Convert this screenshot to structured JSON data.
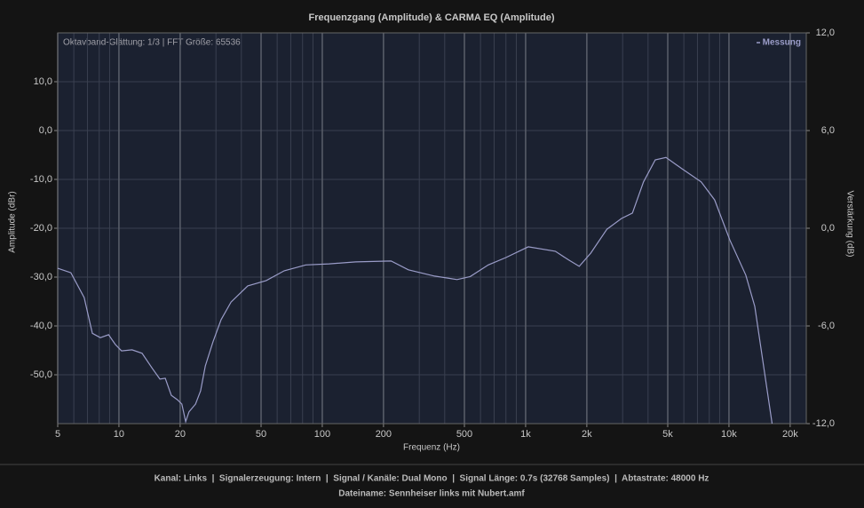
{
  "chart_data": {
    "type": "line",
    "title": "Frequenzgang (Amplitude) & CARMA EQ (Amplitude)",
    "x_label": "Frequenz (Hz)",
    "y_label": "Amplitude (dBr)",
    "y2_label": "Verstärkung (dB)",
    "annotation": "Oktavband-Glättung: 1/3 | FFT Größe: 65536",
    "x_log": true,
    "grid": true,
    "minor_grid": true,
    "legend": "top-right",
    "xlim": [
      5,
      24000
    ],
    "xticks": [
      5,
      10,
      20,
      50,
      100,
      200,
      500,
      {
        "value": 1000,
        "label": "1k"
      },
      {
        "value": 2000,
        "label": "2k"
      },
      {
        "value": 5000,
        "label": "5k"
      },
      {
        "value": 10000,
        "label": "10k"
      },
      {
        "value": 20000,
        "label": "20k"
      }
    ],
    "ylim": [
      -60,
      20
    ],
    "yticks": [
      {
        "value": 10,
        "label": "10,0"
      },
      {
        "value": 0,
        "label": "0,0"
      },
      {
        "value": -10,
        "label": "-10,0"
      },
      {
        "value": -20,
        "label": "-20,0"
      },
      {
        "value": -30,
        "label": "-30,0"
      },
      {
        "value": -40,
        "label": "-40,0"
      },
      {
        "value": -50,
        "label": "-50,0"
      }
    ],
    "y2lim": [
      -12,
      12
    ],
    "y2ticks": [
      {
        "value": 12,
        "label": "12,0"
      },
      {
        "value": 6,
        "label": "6,0"
      },
      {
        "value": 0,
        "label": "0,0"
      },
      {
        "value": -6,
        "label": "-6,0"
      },
      {
        "value": -12,
        "label": "-12,0"
      }
    ],
    "x": [
      5,
      5.8,
      6.75,
      7.4,
      8.1,
      8.9,
      9.6,
      10.3,
      11.6,
      13,
      14.6,
      15.9,
      16.9,
      18.1,
      19.4,
      20.4,
      21.3,
      22.1,
      23.8,
      25.2,
      26.6,
      29,
      31.8,
      35.6,
      43,
      53,
      65,
      83,
      108,
      146,
      218,
      265,
      357,
      460,
      534,
      655,
      800,
      1030,
      1400,
      1630,
      1835,
      2090,
      2510,
      2960,
      3350,
      3800,
      4340,
      4900,
      5860,
      7300,
      8500,
      10100,
      12100,
      13400,
      16300
    ],
    "series": [
      {
        "name": "Messung",
        "color": "#9a9cc8",
        "values": [
          -28.2,
          -29.1,
          -34.2,
          -41.5,
          -42.4,
          -41.8,
          -43.8,
          -45.1,
          -44.9,
          -45.6,
          -48.7,
          -50.9,
          -50.7,
          -54.2,
          -55.1,
          -56,
          -59.6,
          -57.6,
          -56,
          -53.3,
          -48.2,
          -43.3,
          -38.7,
          -35.1,
          -31.8,
          -30.7,
          -28.7,
          -27.5,
          -27.3,
          -26.9,
          -26.7,
          -28.5,
          -29.8,
          -30.5,
          -29.9,
          -27.5,
          -26,
          -23.8,
          -24.7,
          -26.5,
          -27.8,
          -25.1,
          -20.2,
          -18,
          -16.9,
          -10.5,
          -6,
          -5.5,
          -7.8,
          -10.5,
          -14.2,
          -22.4,
          -29.6,
          -36,
          -60
        ]
      }
    ]
  },
  "footer": {
    "line1": "Kanal: Links  |  Signalerzeugung: Intern  |  Signal / Kanäle: Dual Mono  |  Signal Länge: 0.7s (32768 Samples)  |  Abtastrate: 48000 Hz",
    "line2": "Dateiname: Sennheiser links mit Nubert.amf"
  }
}
